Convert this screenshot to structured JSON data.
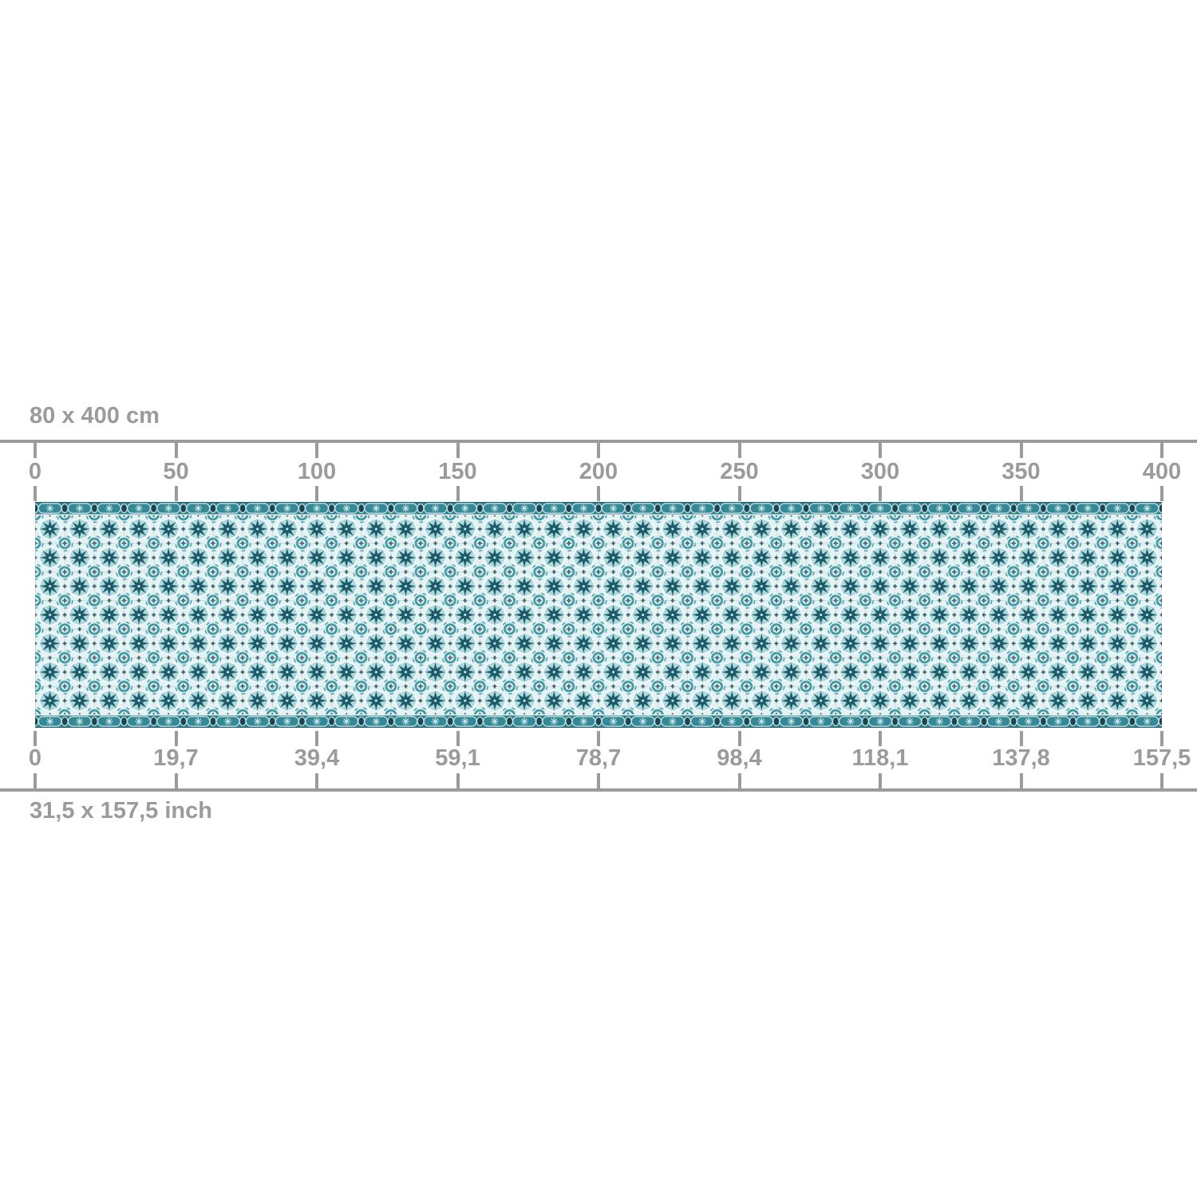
{
  "page": {
    "background": "#ffffff"
  },
  "product": {
    "name": "tile-pattern-panel-dimension-diagram",
    "cm_size_label": "80 x 400 cm",
    "inch_size_label": "31,5 x 157,5 inch"
  },
  "cm_ruler": {
    "unit": "cm",
    "tick_labels": [
      "0",
      "50",
      "100",
      "150",
      "200",
      "250",
      "300",
      "350",
      "400"
    ]
  },
  "inch_ruler": {
    "unit": "inch",
    "tick_labels": [
      "0",
      "19,7",
      "39,4",
      "59,1",
      "78,7",
      "98,4",
      "118,1",
      "137,8",
      "157,5"
    ]
  },
  "panel": {
    "pattern": "moroccan-star-tile-strip",
    "colors": {
      "ruler_gray": "#9b9b9b",
      "star_dark_teal": "#1d5a68",
      "scroll_teal": "#3f98a3",
      "light_blue": "#aedade",
      "pale_background": "#e4f2f3",
      "border_teal": "#2e7f8c",
      "border_navy": "#1c4553",
      "border_light": "#cfe9ea",
      "grout": "#8fc2c8"
    }
  }
}
